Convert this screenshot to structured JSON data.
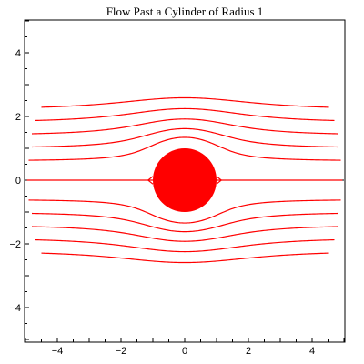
{
  "chart_data": {
    "type": "line",
    "title": "Flow Past a Cylinder of Radius 1",
    "xlabel": "",
    "ylabel": "",
    "xlim": [
      -5,
      5
    ],
    "ylim": [
      -5,
      5
    ],
    "x_ticks": [
      -4,
      -2,
      0,
      2,
      4
    ],
    "y_ticks": [
      -4,
      -2,
      0,
      2,
      4
    ],
    "grid": false,
    "cylinder": {
      "cx": 0,
      "cy": 0,
      "r": 1,
      "color": "#ff0000"
    },
    "streamline_color": "#ff0000",
    "series": [
      {
        "psi": 2.2,
        "x_range": [
          -4.5,
          4.5
        ]
      },
      {
        "psi": 1.8,
        "x_range": [
          -4.7,
          4.7
        ]
      },
      {
        "psi": 1.4,
        "x_range": [
          -4.8,
          4.8
        ]
      },
      {
        "psi": 1.0,
        "x_range": [
          -4.8,
          4.8
        ]
      },
      {
        "psi": 0.6,
        "x_range": [
          -4.9,
          4.9
        ]
      },
      {
        "psi": 0.0,
        "x_range": [
          -4.95,
          4.95
        ]
      },
      {
        "psi": -0.6,
        "x_range": [
          -4.9,
          4.9
        ]
      },
      {
        "psi": -1.0,
        "x_range": [
          -4.8,
          4.8
        ]
      },
      {
        "psi": -1.4,
        "x_range": [
          -4.8,
          4.8
        ]
      },
      {
        "psi": -1.8,
        "x_range": [
          -4.7,
          4.7
        ]
      },
      {
        "psi": -2.2,
        "x_range": [
          -4.5,
          4.5
        ]
      }
    ]
  }
}
